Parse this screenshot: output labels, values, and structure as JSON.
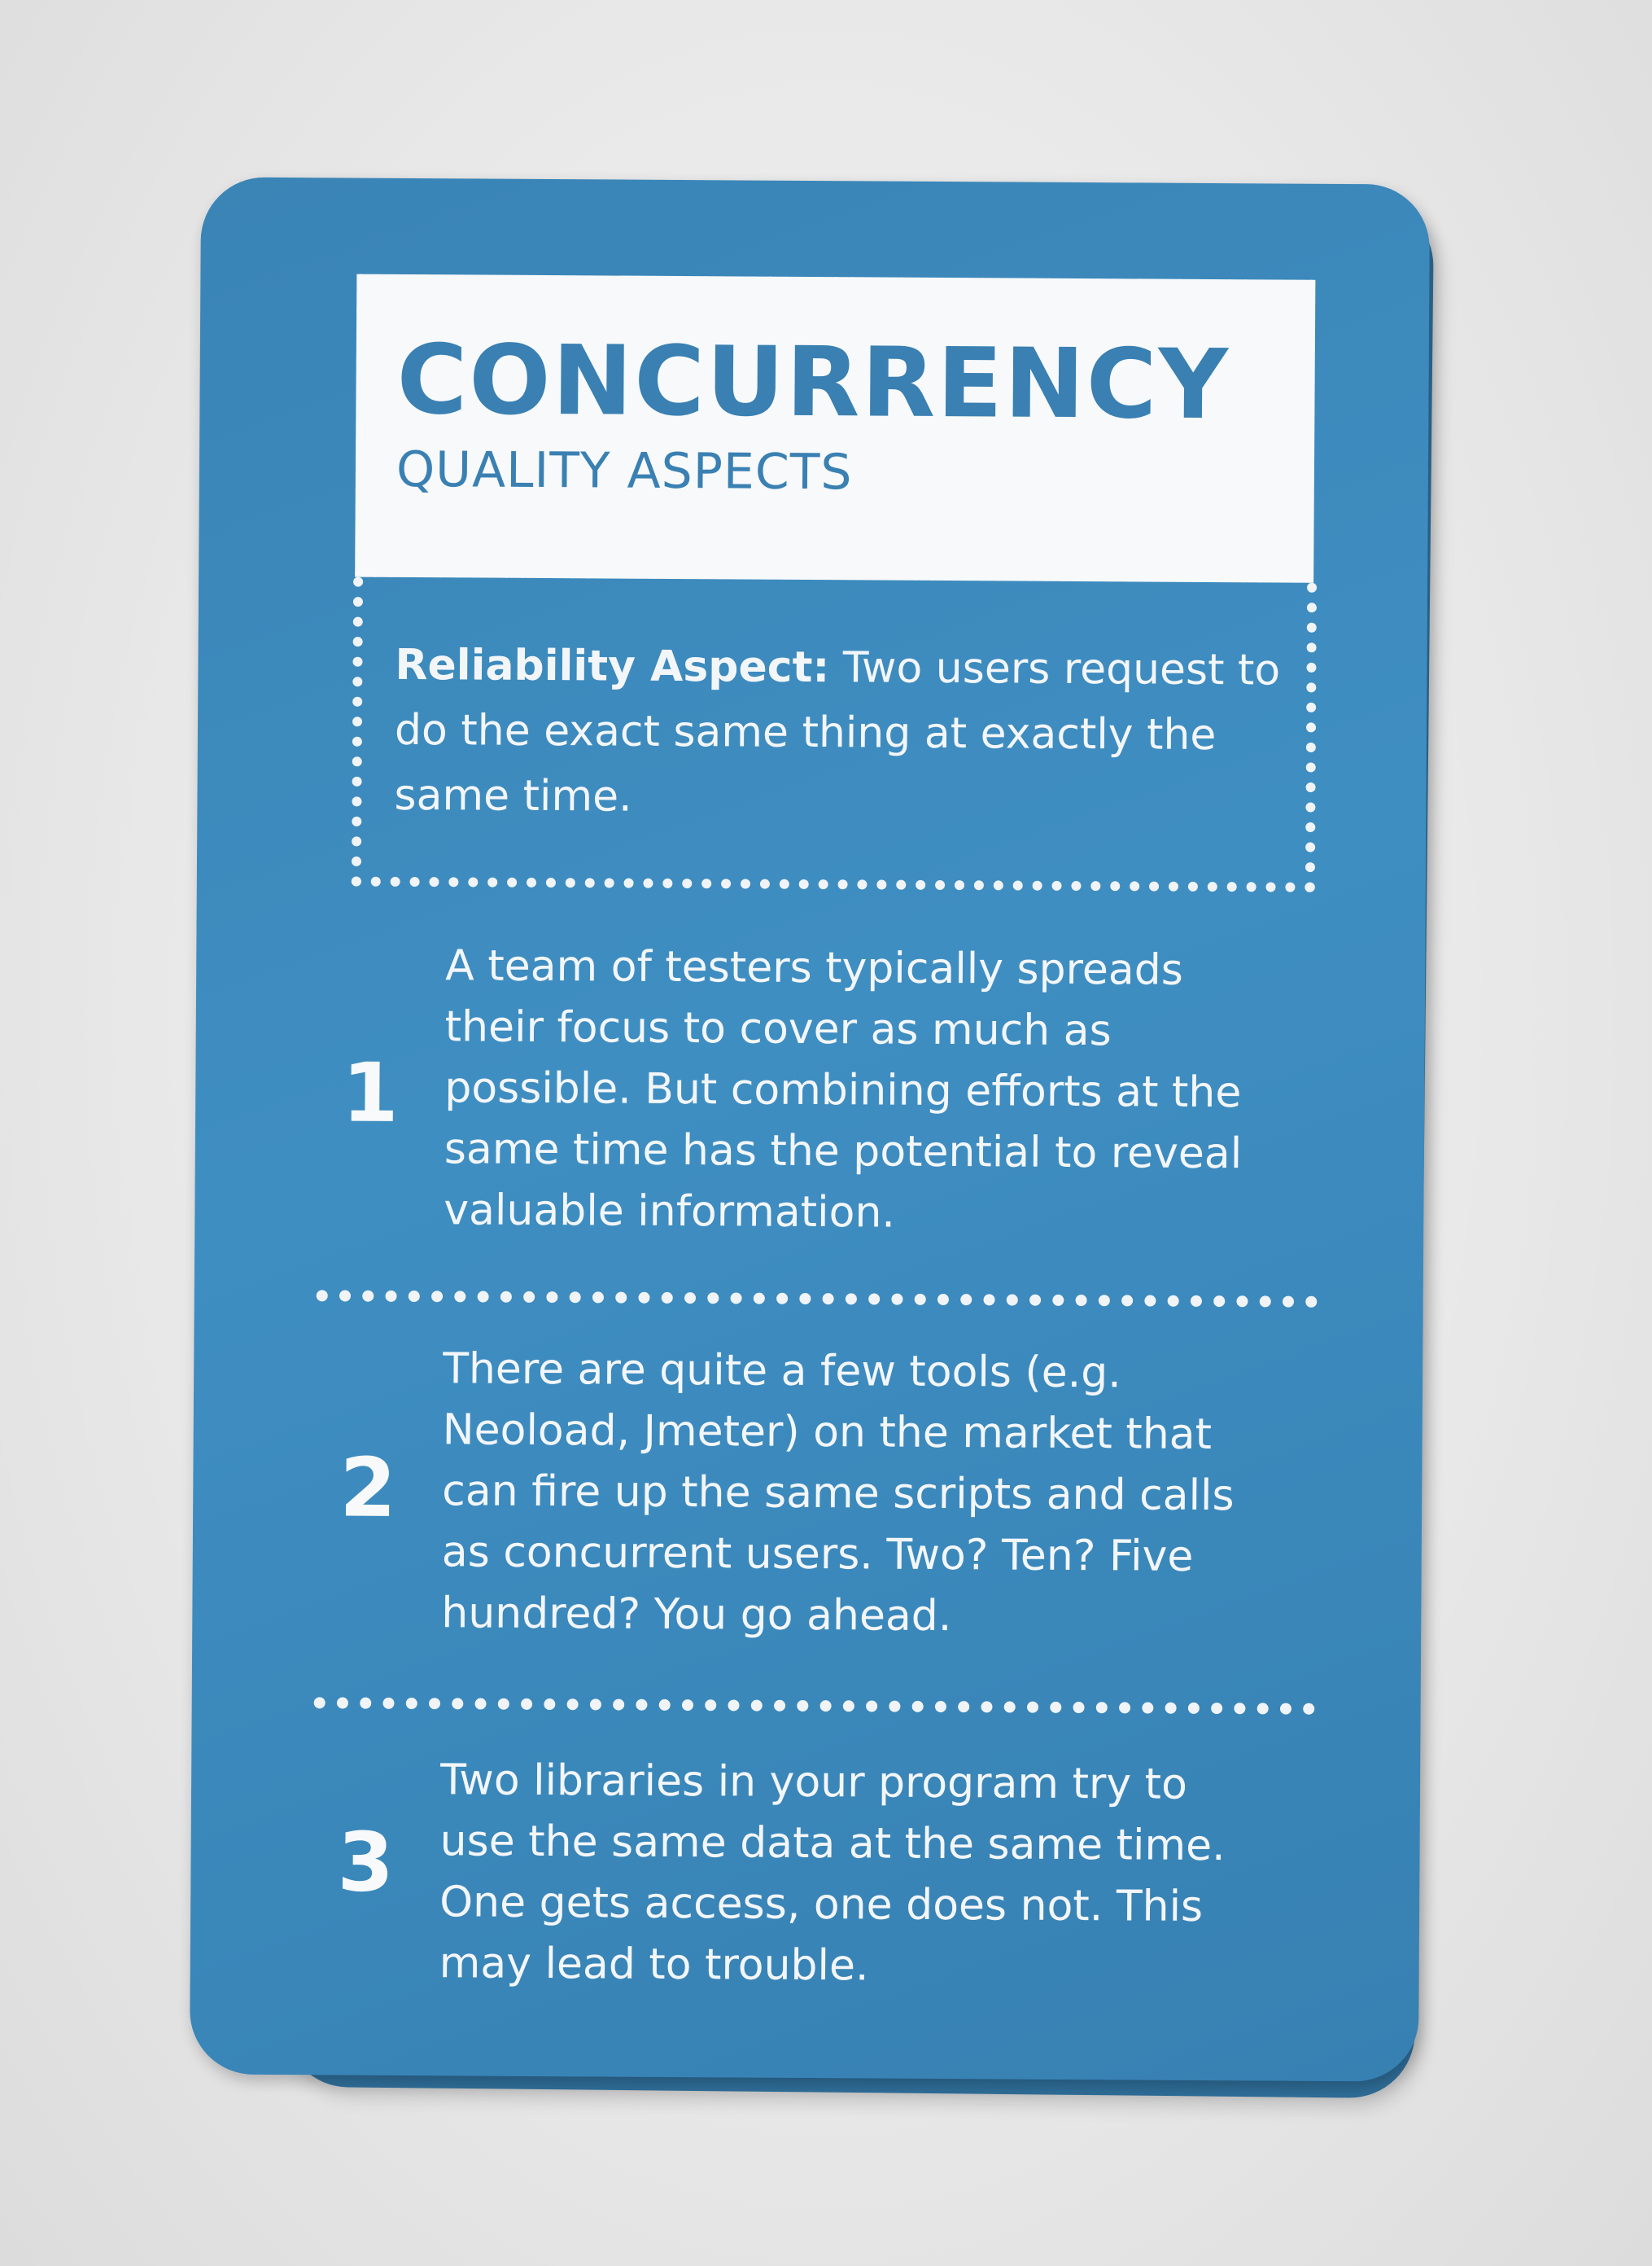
{
  "card": {
    "title": "CONCURRENCY",
    "subtitle": "QUALITY ASPECTS",
    "aspect": {
      "label": "Reliability Aspect:",
      "text": "Two users request to do the exact same thing at exactly the same time."
    },
    "items": [
      {
        "number": "1",
        "text": "A team of testers typically spreads their focus to cover as much as possible. But combining efforts at the same time has the potential to reveal valuable information."
      },
      {
        "number": "2",
        "text": "There are quite a few tools (e.g. Neoload, Jmeter) on the market that can fire up the same scripts and calls as concurrent users. Two? Ten? Five hundred? You go ahead."
      },
      {
        "number": "3",
        "text": "Two libraries in your program try to use the same data at the same time. One gets access, one does not. This may lead to trouble."
      }
    ],
    "colors": {
      "card_blue": "#3a86b9",
      "ink_white": "#f3f6f8"
    }
  }
}
